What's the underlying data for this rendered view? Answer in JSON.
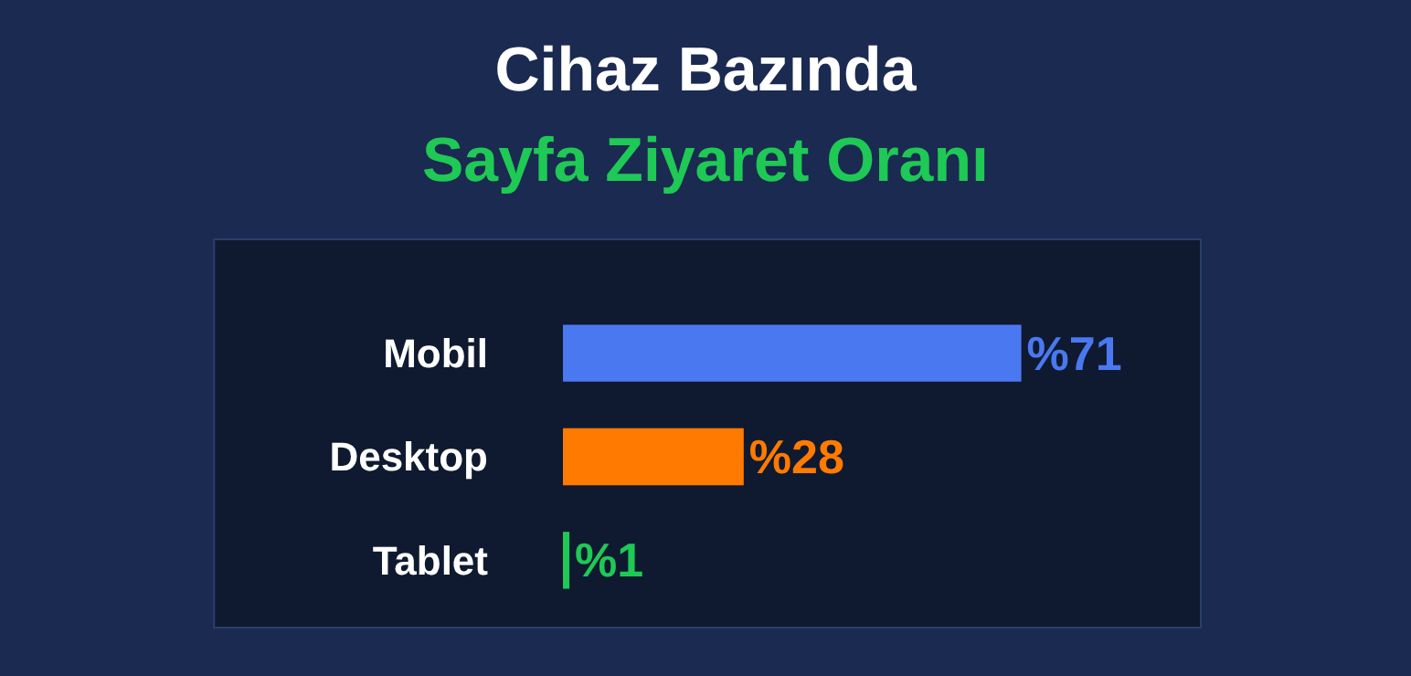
{
  "chart_data": {
    "type": "bar",
    "orientation": "horizontal",
    "title": "Cihaz Bazında",
    "subtitle": "Sayfa Ziyaret Oranı",
    "categories": [
      "Mobil",
      "Desktop",
      "Tablet"
    ],
    "values": [
      71,
      28,
      1
    ],
    "colors": [
      "#4a78f0",
      "#ff7a00",
      "#1ec955"
    ],
    "value_labels": [
      "%71",
      "%28",
      "%1"
    ],
    "legend": false
  }
}
